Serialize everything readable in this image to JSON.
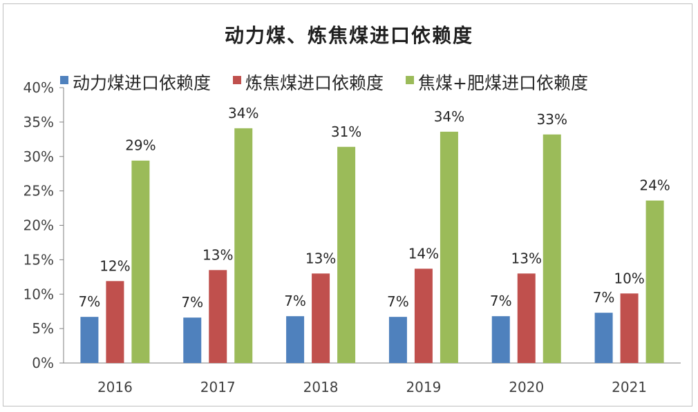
{
  "chart_data": {
    "type": "bar",
    "title": "动力煤、炼焦煤进口依赖度",
    "categories": [
      "2016",
      "2017",
      "2018",
      "2019",
      "2020",
      "2021"
    ],
    "ylim": [
      0,
      0.4
    ],
    "yticks": [
      "0%",
      "5%",
      "10%",
      "15%",
      "20%",
      "25%",
      "30%",
      "35%",
      "40%"
    ],
    "legend_position": "top",
    "series": [
      {
        "name": "动力煤进口依赖度",
        "color": "#4f81bd",
        "values": [
          0.067,
          0.066,
          0.068,
          0.067,
          0.068,
          0.073
        ],
        "labels": [
          "7%",
          "7%",
          "7%",
          "7%",
          "7%",
          "7%"
        ]
      },
      {
        "name": "炼焦煤进口依赖度",
        "color": "#c0504d",
        "values": [
          0.119,
          0.135,
          0.13,
          0.137,
          0.13,
          0.101
        ],
        "labels": [
          "12%",
          "13%",
          "13%",
          "14%",
          "13%",
          "10%"
        ]
      },
      {
        "name": "焦煤+肥煤进口依赖度",
        "color": "#9bbb59",
        "values": [
          0.294,
          0.341,
          0.314,
          0.336,
          0.332,
          0.236
        ],
        "labels": [
          "29%",
          "34%",
          "31%",
          "34%",
          "33%",
          "24%"
        ]
      }
    ]
  }
}
